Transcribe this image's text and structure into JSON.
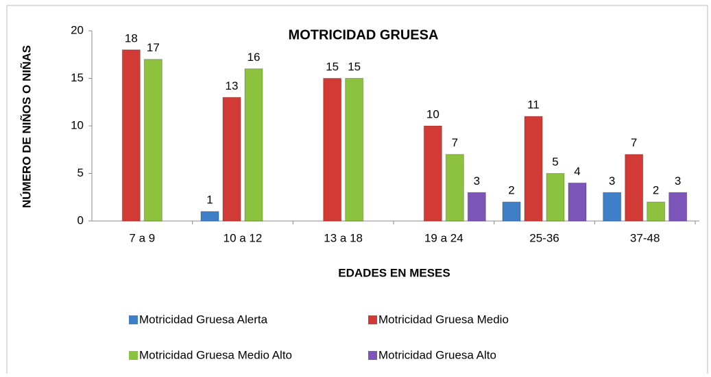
{
  "chart_data": {
    "type": "bar",
    "title": "MOTRICIDAD GRUESA",
    "x_label": "EDADES EN MESES",
    "y_label": "NÚMERO DE NIÑOS O NIÑAS",
    "categories": [
      "7 a 9",
      "10 a 12",
      "13 a 18",
      "19 a 24",
      "25-36",
      "37-48"
    ],
    "series": [
      {
        "name": "Motricidad Gruesa Alerta",
        "color": "#3f7fc8",
        "values": [
          null,
          1,
          null,
          null,
          2,
          3
        ]
      },
      {
        "name": "Motricidad Gruesa Medio",
        "color": "#d13a35",
        "values": [
          18,
          13,
          15,
          10,
          11,
          7
        ]
      },
      {
        "name": "Motricidad Gruesa Medio Alto",
        "color": "#8dc23f",
        "values": [
          17,
          16,
          15,
          7,
          5,
          2
        ]
      },
      {
        "name": "Motricidad Gruesa Alto",
        "color": "#7d55b8",
        "values": [
          null,
          null,
          null,
          3,
          4,
          3
        ]
      }
    ],
    "ylim": [
      0,
      20
    ],
    "yticks": [
      0,
      5,
      10,
      15,
      20
    ],
    "grid": false
  }
}
